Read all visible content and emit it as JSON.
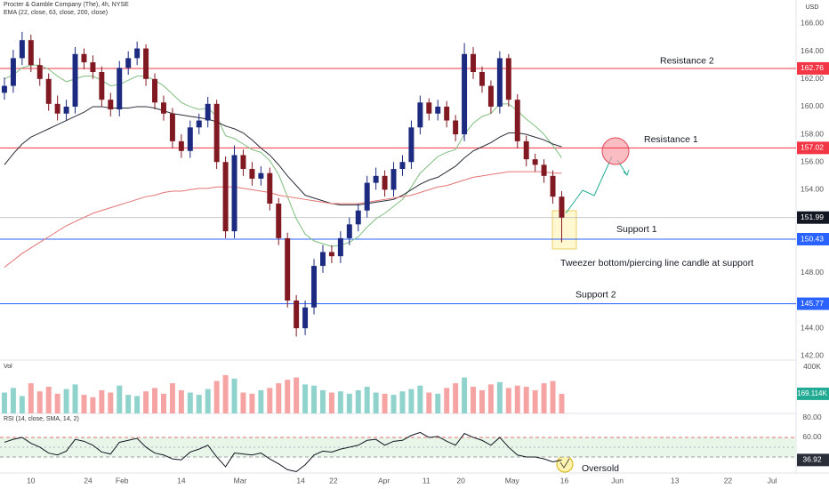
{
  "chart_data": {
    "type": "candlestick",
    "title": "Procter & Gamble Company (The), 4h, NYSE",
    "currency": "USD",
    "x": [
      0,
      1,
      2,
      3,
      4,
      5,
      6,
      7,
      8,
      9,
      10,
      11,
      12,
      13,
      14,
      15,
      16,
      17,
      18,
      19,
      20,
      21,
      22,
      23,
      24,
      25,
      26,
      27,
      28,
      29,
      30,
      31,
      32,
      33,
      34,
      35,
      36,
      37,
      38,
      39,
      40,
      41,
      42,
      43,
      44,
      45,
      46,
      47,
      48,
      49,
      50,
      51,
      52,
      53,
      54,
      55,
      56,
      57,
      58,
      59,
      60,
      61,
      62,
      63
    ],
    "xlim": [
      -0.5,
      89.5
    ],
    "xticks": [
      {
        "value": 3.0,
        "label": "10"
      },
      {
        "value": 9.46,
        "label": "24"
      },
      {
        "value": 13.3,
        "label": "Feb"
      },
      {
        "value": 20.0,
        "label": "14"
      },
      {
        "value": 26.65,
        "label": "Mar"
      },
      {
        "value": 33.5,
        "label": "14"
      },
      {
        "value": 37.2,
        "label": "22"
      },
      {
        "value": 42.9,
        "label": "Apr"
      },
      {
        "value": 47.7,
        "label": "11"
      },
      {
        "value": 51.6,
        "label": "20"
      },
      {
        "value": 57.4,
        "label": "May"
      },
      {
        "value": 63.3,
        "label": "16"
      },
      {
        "value": 69.3,
        "label": "Jun"
      },
      {
        "value": 75.8,
        "label": "13"
      },
      {
        "value": 81.8,
        "label": "22"
      },
      {
        "value": 86.8,
        "label": "Jul"
      }
    ],
    "ylim": [
      141.7,
      167.7
    ],
    "yticks": [
      {
        "value": 142,
        "label": "142.00"
      },
      {
        "value": 144,
        "label": "144.00"
      },
      {
        "value": 148,
        "label": "148.00"
      },
      {
        "value": 154,
        "label": "154.00"
      },
      {
        "value": 156,
        "label": "156.00"
      },
      {
        "value": 158,
        "label": "158.00"
      },
      {
        "value": 160,
        "label": "160.00"
      },
      {
        "value": 162,
        "label": "162.00"
      },
      {
        "value": 164,
        "label": "164.00"
      },
      {
        "value": 166,
        "label": "166.00"
      }
    ],
    "up_color": "#1c2a80",
    "down_color": "#801922",
    "open": [
      161.0,
      161.5,
      163.5,
      164.8,
      163.0,
      162.0,
      160.2,
      159.5,
      160.0,
      163.8,
      163.2,
      162.5,
      160.5,
      159.8,
      162.8,
      163.5,
      164.2,
      162.0,
      160.3,
      159.5,
      157.5,
      156.8,
      158.5,
      159.0,
      160.2,
      156.0,
      151.0,
      156.5,
      155.5,
      154.8,
      155.2,
      153.0,
      150.5,
      146.0,
      144.0,
      145.5,
      148.5,
      149.5,
      149.2,
      150.5,
      151.5,
      152.5,
      154.5,
      155.0,
      154.0,
      155.5,
      156.0,
      158.5,
      160.3,
      159.5,
      160.0,
      159.0,
      158.0,
      163.8,
      162.5,
      161.5,
      160.0,
      163.5,
      160.5,
      157.5,
      156.2,
      155.8,
      155.0,
      153.5
    ],
    "high": [
      162.1,
      164.1,
      165.4,
      165.2,
      163.5,
      162.4,
      160.8,
      160.5,
      164.3,
      164.2,
      163.7,
      162.9,
      161.0,
      163.3,
      164.0,
      164.7,
      164.5,
      162.4,
      160.8,
      159.9,
      158.0,
      159.0,
      159.5,
      160.7,
      160.5,
      156.4,
      157.2,
      156.9,
      156.0,
      155.7,
      155.6,
      153.4,
      150.9,
      146.4,
      146.0,
      149.0,
      150.0,
      150.0,
      151.0,
      152.0,
      153.0,
      155.0,
      155.6,
      155.4,
      156.0,
      156.5,
      159.0,
      160.8,
      160.6,
      160.5,
      160.4,
      159.4,
      164.6,
      164.3,
      162.9,
      161.9,
      164.0,
      163.8,
      160.9,
      157.9,
      156.6,
      156.2,
      155.4,
      153.9
    ],
    "low": [
      160.5,
      161.0,
      163.0,
      162.5,
      161.5,
      159.7,
      159.0,
      159.0,
      159.5,
      162.7,
      162.0,
      160.0,
      159.3,
      159.3,
      162.3,
      163.0,
      161.5,
      159.8,
      159.0,
      157.0,
      156.3,
      156.3,
      158.0,
      158.5,
      155.5,
      150.5,
      150.5,
      155.0,
      154.3,
      154.3,
      152.5,
      150.0,
      145.5,
      143.4,
      143.5,
      145.0,
      148.0,
      148.7,
      148.7,
      150.0,
      151.0,
      152.0,
      154.0,
      153.5,
      153.5,
      155.0,
      155.5,
      158.0,
      159.0,
      159.0,
      158.5,
      157.5,
      157.5,
      162.0,
      161.0,
      159.5,
      159.5,
      160.0,
      157.0,
      155.7,
      155.3,
      154.5,
      153.0,
      150.2
    ],
    "close": [
      161.5,
      163.5,
      164.8,
      163.0,
      162.0,
      160.2,
      159.5,
      160.0,
      163.8,
      163.2,
      162.5,
      160.5,
      159.8,
      162.8,
      163.5,
      164.2,
      162.0,
      160.3,
      159.5,
      157.5,
      156.8,
      158.5,
      159.0,
      160.2,
      156.0,
      151.0,
      156.5,
      155.5,
      154.8,
      155.2,
      153.0,
      150.5,
      146.0,
      144.0,
      145.5,
      148.5,
      149.5,
      149.2,
      150.5,
      151.5,
      152.5,
      154.5,
      155.0,
      154.0,
      155.5,
      156.0,
      158.5,
      160.3,
      159.5,
      160.0,
      159.0,
      158.0,
      163.8,
      162.5,
      161.5,
      160.0,
      163.5,
      160.5,
      157.5,
      156.2,
      155.8,
      155.0,
      153.5,
      151.99
    ],
    "ema": {
      "label": "EMA (22, close, 63, close, 200, close)",
      "series": [
        {
          "color": "#7fbf7f",
          "values": [
            162,
            162.3,
            162.8,
            163,
            163,
            162.7,
            162.2,
            161.8,
            162,
            162.2,
            162.2,
            161.9,
            161.5,
            161.6,
            161.9,
            162.2,
            162.2,
            161.9,
            161.5,
            160.9,
            160.3,
            160,
            159.8,
            159.9,
            159.3,
            157.9,
            157.7,
            157.3,
            156.9,
            156.7,
            156.1,
            155.1,
            153.5,
            151.9,
            150.8,
            150.3,
            150.1,
            149.9,
            150,
            150.2,
            150.6,
            151.3,
            151.9,
            152.3,
            152.8,
            153.3,
            154.2,
            155.2,
            155.8,
            156.4,
            156.7,
            156.9,
            158,
            158.8,
            159.3,
            159.5,
            160.2,
            160.2,
            159.7,
            159.1,
            158.6,
            158,
            157.2,
            156.3
          ]
        },
        {
          "color": "#2a2e39",
          "values": [
            155.8,
            156.6,
            157.3,
            157.8,
            158.1,
            158.4,
            158.7,
            159,
            159.3,
            159.6,
            160,
            160,
            159.9,
            159.9,
            159.9,
            160,
            160,
            159.9,
            159.7,
            159.5,
            159.4,
            159.3,
            159.2,
            159.1,
            158.9,
            158.6,
            158.4,
            158.1,
            157.6,
            157,
            156.5,
            155.8,
            155,
            154.3,
            153.6,
            153.4,
            153.2,
            153,
            152.9,
            152.9,
            152.9,
            153,
            153.1,
            153.2,
            153.3,
            153.6,
            154,
            154.4,
            154.7,
            154.9,
            155.3,
            155.7,
            156.3,
            156.8,
            157.1,
            157.4,
            157.8,
            158.1,
            158.1,
            158,
            157.8,
            157.6,
            157.3,
            157.1
          ]
        },
        {
          "color": "#e57373",
          "values": [
            148.4,
            148.9,
            149.4,
            149.8,
            150.2,
            150.6,
            151,
            151.4,
            151.7,
            152,
            152.3,
            152.5,
            152.7,
            152.9,
            153.1,
            153.3,
            153.5,
            153.6,
            153.8,
            153.9,
            153.9,
            154,
            154.1,
            154.1,
            154.2,
            154.2,
            154.2,
            154.1,
            154,
            153.9,
            153.8,
            153.6,
            153.5,
            153.4,
            153.3,
            153.2,
            153.1,
            153,
            153,
            153,
            153,
            153.1,
            153.2,
            153.3,
            153.4,
            153.5,
            153.6,
            153.8,
            154,
            154.2,
            154.3,
            154.5,
            154.7,
            154.9,
            155,
            155.1,
            155.2,
            155.3,
            155.3,
            155.3,
            155.3,
            155.3,
            155.2,
            155.2
          ]
        }
      ]
    },
    "levels": [
      {
        "label": "Resistance 2",
        "value": 162.76,
        "color": "#f23645"
      },
      {
        "label": "Resistance 1",
        "value": 157.02,
        "color": "#f23645"
      },
      {
        "label": "Support 1",
        "value": 150.43,
        "color": "#2962ff"
      },
      {
        "label": "Support 2",
        "value": 145.77,
        "color": "#2962ff"
      }
    ],
    "annotations": [
      "Tweezer bottom/piercing line candle at support",
      "Oversold"
    ],
    "volume": {
      "label": "Vol",
      "ylim": [
        0,
        460000
      ],
      "yticks": [
        {
          "value": 400000,
          "label": "400K"
        }
      ],
      "last_label": "169.114K",
      "up_color": "#8fd3cc",
      "down_color": "#f5a3a3",
      "values": [
        180000,
        220000,
        150000,
        260000,
        190000,
        230000,
        170000,
        210000,
        250000,
        160000,
        140000,
        200000,
        180000,
        240000,
        160000,
        150000,
        190000,
        220000,
        170000,
        260000,
        200000,
        180000,
        160000,
        210000,
        280000,
        330000,
        300000,
        180000,
        170000,
        200000,
        220000,
        260000,
        290000,
        310000,
        250000,
        240000,
        200000,
        180000,
        190000,
        170000,
        200000,
        230000,
        180000,
        170000,
        160000,
        190000,
        210000,
        240000,
        180000,
        170000,
        220000,
        260000,
        310000,
        230000,
        200000,
        250000,
        270000,
        220000,
        240000,
        230000,
        200000,
        260000,
        280000,
        169114
      ]
    },
    "rsi": {
      "label": "RSI (14, close, SMA, 14, 2)",
      "ylim": [
        23.6,
        84.5
      ],
      "yticks": [
        {
          "value": 80,
          "label": "80.00"
        },
        {
          "value": 60,
          "label": "60.00"
        }
      ],
      "upper": 60,
      "middle": 50,
      "lower": 40,
      "color": "#131722",
      "values": [
        55,
        58,
        60,
        54,
        50,
        44,
        42,
        46,
        58,
        56,
        52,
        45,
        43,
        55,
        57,
        59,
        50,
        44,
        42,
        38,
        37,
        45,
        48,
        52,
        40,
        30,
        44,
        43,
        42,
        44,
        38,
        33,
        27,
        25,
        32,
        42,
        46,
        45,
        48,
        50,
        52,
        57,
        58,
        52,
        56,
        57,
        62,
        65,
        60,
        61,
        56,
        52,
        64,
        60,
        57,
        52,
        60,
        50,
        42,
        40,
        40,
        38,
        35,
        36.92
      ]
    }
  }
}
